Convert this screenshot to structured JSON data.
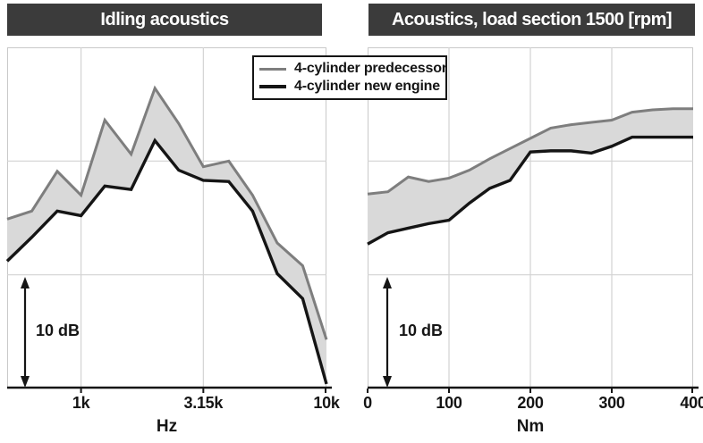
{
  "legend": {
    "items": [
      {
        "label": "4-cylinder predecessor",
        "series": "predecessor"
      },
      {
        "label": "4-cylinder new engine",
        "series": "new_engine"
      }
    ]
  },
  "scale_bar": {
    "label": "10 dB",
    "span_db": 10
  },
  "colors": {
    "title_bar_bg": "#3b3b3b",
    "title_text": "#ffffff",
    "predecessor_line": "#7e7e7e",
    "new_engine_line": "#151515",
    "band_fill": "#d9d9d9",
    "gridline": "#d3d3d3",
    "plot_border": "#c9c9c9",
    "axis_line": "#151515",
    "text": "#151515"
  },
  "chart_data": [
    {
      "type": "area",
      "title": "Idling acoustics",
      "xlabel": "Hz",
      "x_scale": "log",
      "x_min": 500,
      "x_max": 10000,
      "x_tick_values": [
        1000,
        3150,
        10000
      ],
      "x_tick_labels": [
        "1k",
        "3.15k",
        "10k"
      ],
      "y_unit": "dB (relative, 10 dB scale bar shown, no absolute axis)",
      "y_min": 0,
      "y_max": 30,
      "y_gridlines": [
        10,
        20
      ],
      "scale_bar_db": 10,
      "x": [
        500,
        630,
        800,
        1000,
        1250,
        1600,
        2000,
        2500,
        3150,
        4000,
        5000,
        6300,
        8000,
        10000
      ],
      "series": [
        {
          "name": "4-cylinder predecessor",
          "values": [
            14.9,
            15.6,
            19.1,
            17.0,
            23.6,
            20.6,
            26.4,
            23.3,
            19.5,
            20.0,
            17.0,
            12.8,
            10.8,
            4.3
          ]
        },
        {
          "name": "4-cylinder new engine",
          "values": [
            11.2,
            13.3,
            15.6,
            15.2,
            17.8,
            17.5,
            21.8,
            19.2,
            18.3,
            18.2,
            15.6,
            10.1,
            7.9,
            0.4
          ]
        }
      ]
    },
    {
      "type": "area",
      "title": "Acoustics, load section 1500 [rpm]",
      "xlabel": "Nm",
      "x_scale": "linear",
      "x_min": 0,
      "x_max": 400,
      "x_tick_values": [
        0,
        100,
        200,
        300,
        400
      ],
      "x_tick_labels": [
        "0",
        "100",
        "200",
        "300",
        "400"
      ],
      "y_unit": "dB (relative, 10 dB scale bar shown, no absolute axis)",
      "y_min": 0,
      "y_max": 30,
      "y_gridlines": [
        10,
        20
      ],
      "scale_bar_db": 10,
      "x": [
        0,
        25,
        50,
        75,
        100,
        125,
        150,
        175,
        200,
        225,
        250,
        275,
        300,
        325,
        350,
        375,
        400
      ],
      "series": [
        {
          "name": "4-cylinder predecessor",
          "values": [
            17.1,
            17.3,
            18.6,
            18.2,
            18.5,
            19.2,
            20.2,
            21.1,
            22.0,
            22.9,
            23.2,
            23.4,
            23.6,
            24.3,
            24.5,
            24.6,
            24.6
          ]
        },
        {
          "name": "4-cylinder new engine",
          "values": [
            12.7,
            13.7,
            14.1,
            14.5,
            14.8,
            16.3,
            17.6,
            18.3,
            20.8,
            20.9,
            20.9,
            20.7,
            21.3,
            22.1,
            22.1,
            22.1,
            22.1
          ]
        }
      ]
    }
  ]
}
